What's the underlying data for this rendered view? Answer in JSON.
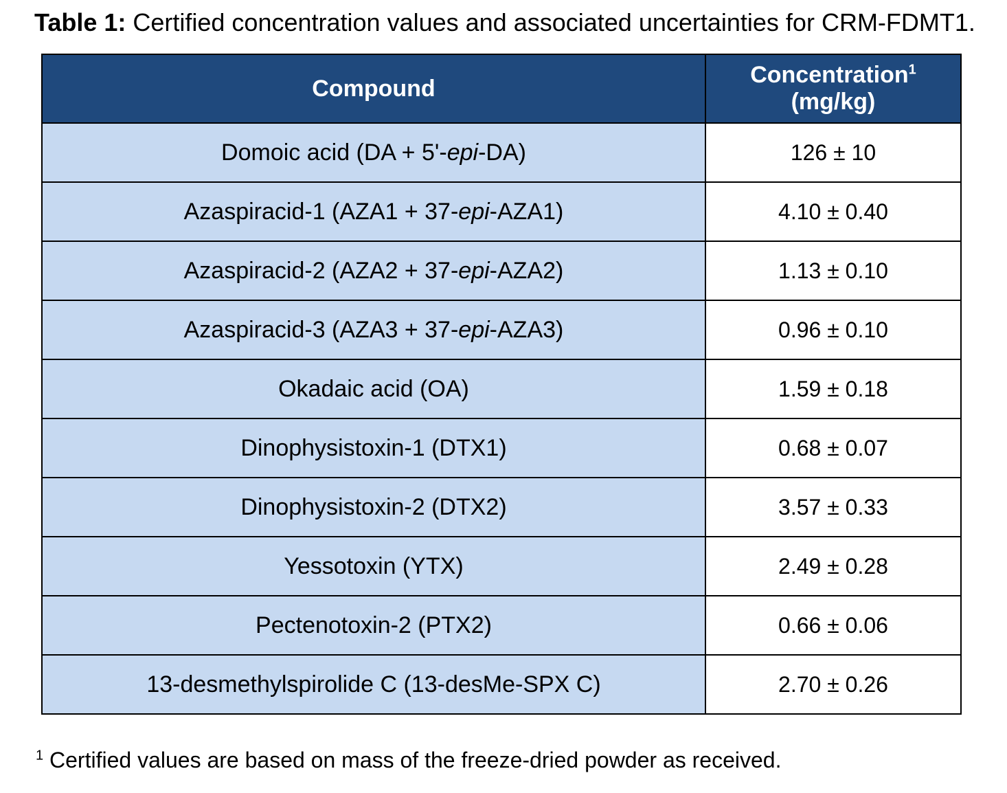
{
  "caption": {
    "label": "Table 1:",
    "text": " Certified concentration values and associated uncertainties for CRM-FDMT1."
  },
  "table": {
    "headers": {
      "compound": "Compound",
      "concentration": "Concentration",
      "concentration_sup": "1",
      "concentration_unit": "(mg/kg)"
    },
    "rows": [
      {
        "compound": {
          "pre": "Domoic acid (DA + 5'-",
          "italic": "epi",
          "post": "-DA)"
        },
        "value": "126 ± 10"
      },
      {
        "compound": {
          "pre": "Azaspiracid-1 (AZA1 + 37-",
          "italic": "epi",
          "post": "-AZA1)"
        },
        "value": "4.10 ± 0.40"
      },
      {
        "compound": {
          "pre": "Azaspiracid-2 (AZA2 + 37-",
          "italic": "epi",
          "post": "-AZA2)"
        },
        "value": "1.13 ± 0.10"
      },
      {
        "compound": {
          "pre": "Azaspiracid-3 (AZA3 + 37-",
          "italic": "epi",
          "post": "-AZA3)"
        },
        "value": "0.96 ± 0.10"
      },
      {
        "compound": {
          "pre": "Okadaic acid (OA)",
          "italic": "",
          "post": ""
        },
        "value": "1.59 ± 0.18"
      },
      {
        "compound": {
          "pre": "Dinophysistoxin-1 (DTX1)",
          "italic": "",
          "post": ""
        },
        "value": "0.68 ± 0.07"
      },
      {
        "compound": {
          "pre": "Dinophysistoxin-2 (DTX2)",
          "italic": "",
          "post": ""
        },
        "value": "3.57 ± 0.33"
      },
      {
        "compound": {
          "pre": "Yessotoxin (YTX)",
          "italic": "",
          "post": ""
        },
        "value": "2.49 ± 0.28"
      },
      {
        "compound": {
          "pre": "Pectenotoxin-2 (PTX2)",
          "italic": "",
          "post": ""
        },
        "value": "0.66 ± 0.06"
      },
      {
        "compound": {
          "pre": "13-desmethylspirolide C (13-desMe-SPX C)",
          "italic": "",
          "post": ""
        },
        "value": "2.70 ± 0.26"
      }
    ]
  },
  "footnote": {
    "marker": "1",
    "text": " Certified values are based on mass of the freeze-dried powder as received."
  },
  "colors": {
    "header_bg": "#1f497d",
    "compound_bg": "#c6d9f1",
    "value_bg": "#ffffff"
  }
}
